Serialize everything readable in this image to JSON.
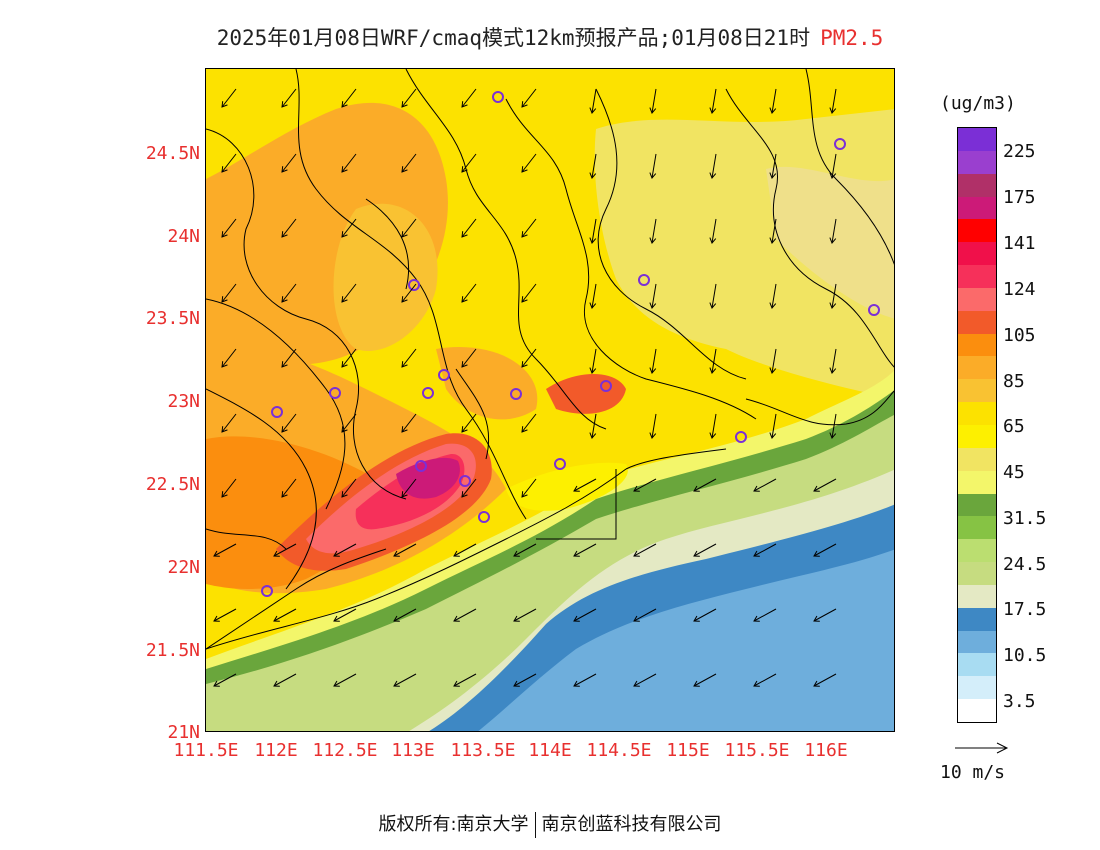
{
  "title": {
    "main": "2025年01月08日WRF/cmaq模式12km预报产品;01月08日21时",
    "pollutant": "PM2.5"
  },
  "axes": {
    "y_labels": [
      "24.5N",
      "24N",
      "23.5N",
      "23N",
      "22.5N",
      "22N",
      "21.5N",
      "21N"
    ],
    "x_labels": [
      "111.5E",
      "112E",
      "112.5E",
      "113E",
      "113.5E",
      "114E",
      "114.5E",
      "115E",
      "115.5E",
      "116E"
    ]
  },
  "colorbar": {
    "unit": "(ug/m3)",
    "labels": [
      "225",
      "175",
      "141",
      "124",
      "105",
      "85",
      "65",
      "45",
      "31.5",
      "24.5",
      "17.5",
      "10.5",
      "3.5"
    ],
    "colors": [
      "#7b2fd6",
      "#9a3fcf",
      "#b03068",
      "#cc1a78",
      "#ff0000",
      "#f0104a",
      "#f6305a",
      "#fb6a6a",
      "#f25a2a",
      "#fb8e0e",
      "#fbac28",
      "#f9c232",
      "#fce200",
      "#fdf000",
      "#f1e462",
      "#f3f66a",
      "#6aa63c",
      "#86c344",
      "#bbde70",
      "#c6dc80",
      "#e4e9c4",
      "#3e88c4",
      "#6eaedc",
      "#a8dcf2",
      "#d4eefa",
      "#ffffff"
    ],
    "vector_label": "10 m/s"
  },
  "stations": [
    "station"
  ],
  "footer": {
    "left": "版权所有:南京大学",
    "right": "南京创蓝科技有限公司"
  }
}
